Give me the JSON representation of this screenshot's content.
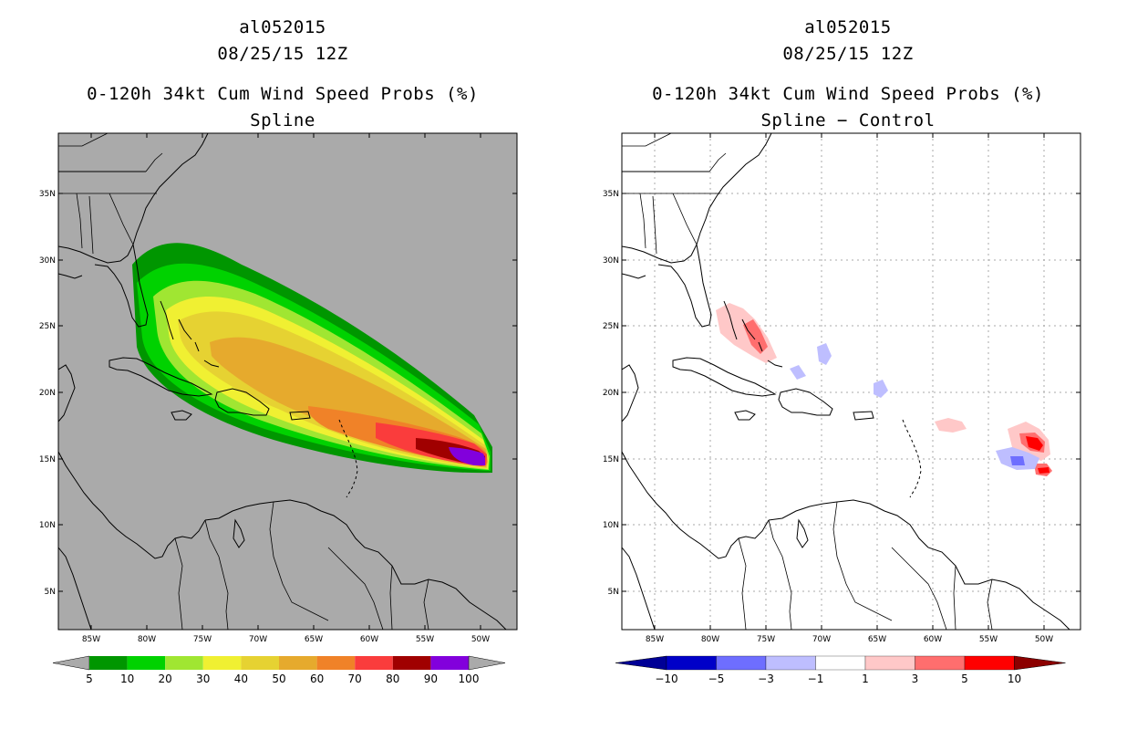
{
  "left_panel": {
    "storm_id": "al052015",
    "datetime": "08/25/15 12Z",
    "product": "0-120h 34kt Cum Wind Speed Probs (%)",
    "subtitle": "Spline",
    "colors": {
      "background": "#aaaaaa"
    },
    "colorbar": {
      "labels": [
        "5",
        "10",
        "20",
        "30",
        "40",
        "50",
        "60",
        "70",
        "80",
        "90",
        "100"
      ],
      "colors": [
        "#009600",
        "#00d200",
        "#a0e632",
        "#f0f032",
        "#e6d232",
        "#e6aa2d",
        "#f08228",
        "#fa3c3c",
        "#a00000",
        "#8200dc"
      ],
      "end_color": "#aaaaaa"
    }
  },
  "right_panel": {
    "storm_id": "al052015",
    "datetime": "08/25/15 12Z",
    "product": "0-120h 34kt Cum Wind Speed Probs (%)",
    "subtitle": "Spline − Control",
    "colorbar": {
      "labels": [
        "−10",
        "−5",
        "−3",
        "−1",
        "1",
        "3",
        "5",
        "10"
      ],
      "colors": [
        "#0000c8",
        "#6e6eff",
        "#bebeff",
        "#ffffff",
        "#ffc8c8",
        "#ff6e6e",
        "#ff0000"
      ],
      "end_colors": [
        "#000096",
        "#8c0000"
      ]
    }
  },
  "axes": {
    "lon_labels": [
      "85W",
      "80W",
      "75W",
      "70W",
      "65W",
      "60W",
      "55W",
      "50W"
    ],
    "lat_labels": [
      "35N",
      "30N",
      "25N",
      "20N",
      "15N",
      "10N",
      "5N"
    ]
  }
}
